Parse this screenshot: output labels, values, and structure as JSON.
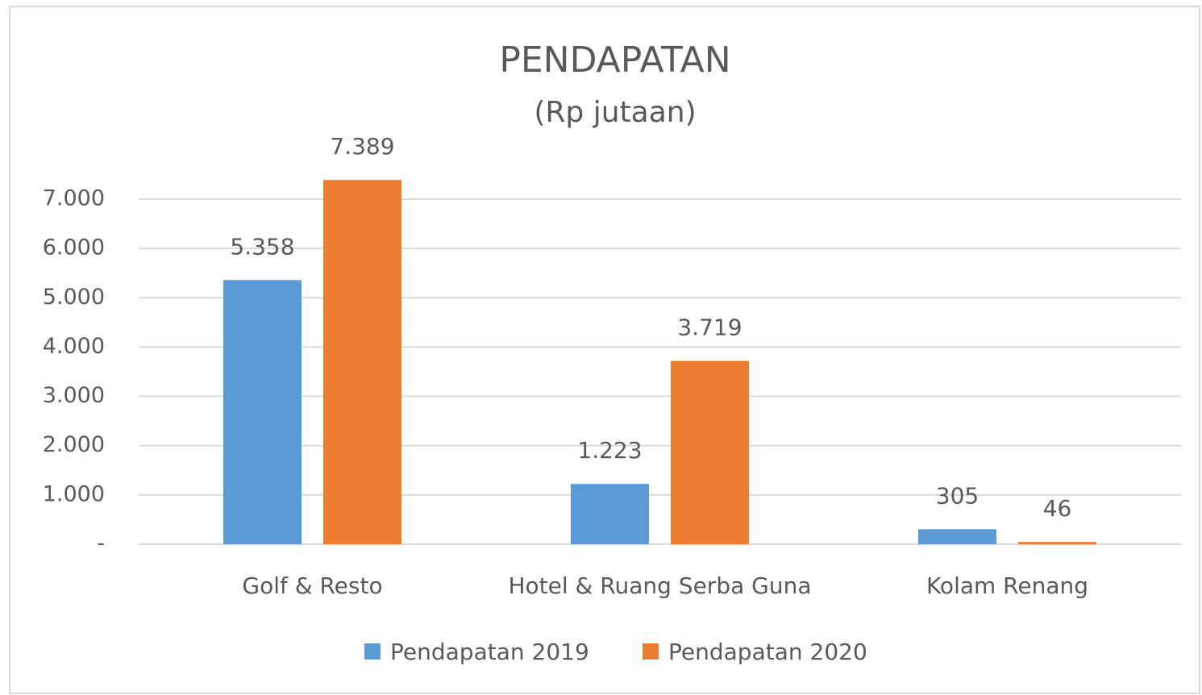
{
  "chart_data": {
    "type": "bar",
    "title": "PENDAPATAN",
    "subtitle": "(Rp jutaan)",
    "categories": [
      "Golf & Resto",
      "Hotel & Ruang Serba Guna",
      "Kolam Renang"
    ],
    "series": [
      {
        "name": "Pendapatan 2019",
        "color": "#5b9bd5",
        "values": [
          5358,
          1223,
          305
        ],
        "value_labels": [
          "5.358",
          "1.223",
          "305"
        ]
      },
      {
        "name": "Pendapatan 2020",
        "color": "#ed7d31",
        "values": [
          7389,
          3719,
          46
        ],
        "value_labels": [
          "7.389",
          "3.719",
          "46"
        ]
      }
    ],
    "ylim": [
      0,
      8000
    ],
    "yticks": [
      {
        "value": 0,
        "label": "-"
      },
      {
        "value": 1000,
        "label": "1.000"
      },
      {
        "value": 2000,
        "label": "2.000"
      },
      {
        "value": 3000,
        "label": "3.000"
      },
      {
        "value": 4000,
        "label": "4.000"
      },
      {
        "value": 5000,
        "label": "5.000"
      },
      {
        "value": 6000,
        "label": "6.000"
      },
      {
        "value": 7000,
        "label": "7.000"
      }
    ],
    "grid": true,
    "legend": "bottom"
  }
}
